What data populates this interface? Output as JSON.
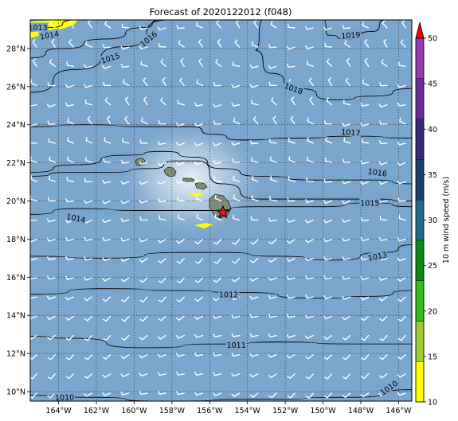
{
  "title": "Forecast of 2020122012 (f048)",
  "map": {
    "lon_range": [
      -165.5,
      -145.3
    ],
    "lat_range": [
      9.5,
      29.5
    ],
    "lon_ticks": [
      "164°W",
      "162°W",
      "160°W",
      "158°W",
      "156°W",
      "154°W",
      "152°W",
      "150°W",
      "148°W",
      "146°W"
    ],
    "lat_ticks": [
      "10°N",
      "12°N",
      "14°N",
      "16°N",
      "18°N",
      "20°N",
      "22°N",
      "24°N",
      "26°N",
      "28°N"
    ],
    "grid": "dotted",
    "ocean_color": "#7aa5cc",
    "land_color": "#7f8c72",
    "marker": {
      "type": "star",
      "color": "#e41a1c",
      "lon": -155.3,
      "lat": 19.4
    }
  },
  "contour_labels": [
    "1010",
    "1010",
    "1011",
    "1012",
    "1013",
    "1013",
    "1014",
    "1014",
    "1015",
    "1015",
    "1016",
    "1016",
    "1017",
    "1018",
    "1019"
  ],
  "colorbar": {
    "label": "10 m wind speed (m/s)",
    "ticks": [
      "10",
      "15",
      "20",
      "25",
      "30",
      "35",
      "40",
      "45",
      "50"
    ],
    "colors": [
      "#ffff00",
      "#9acd32",
      "#33bb22",
      "#118811",
      "#1f6b8f",
      "#1d3f6e",
      "#3a2a7a",
      "#6a2a9a",
      "#9a3ab0"
    ],
    "extend_color": "#ff0000"
  }
}
